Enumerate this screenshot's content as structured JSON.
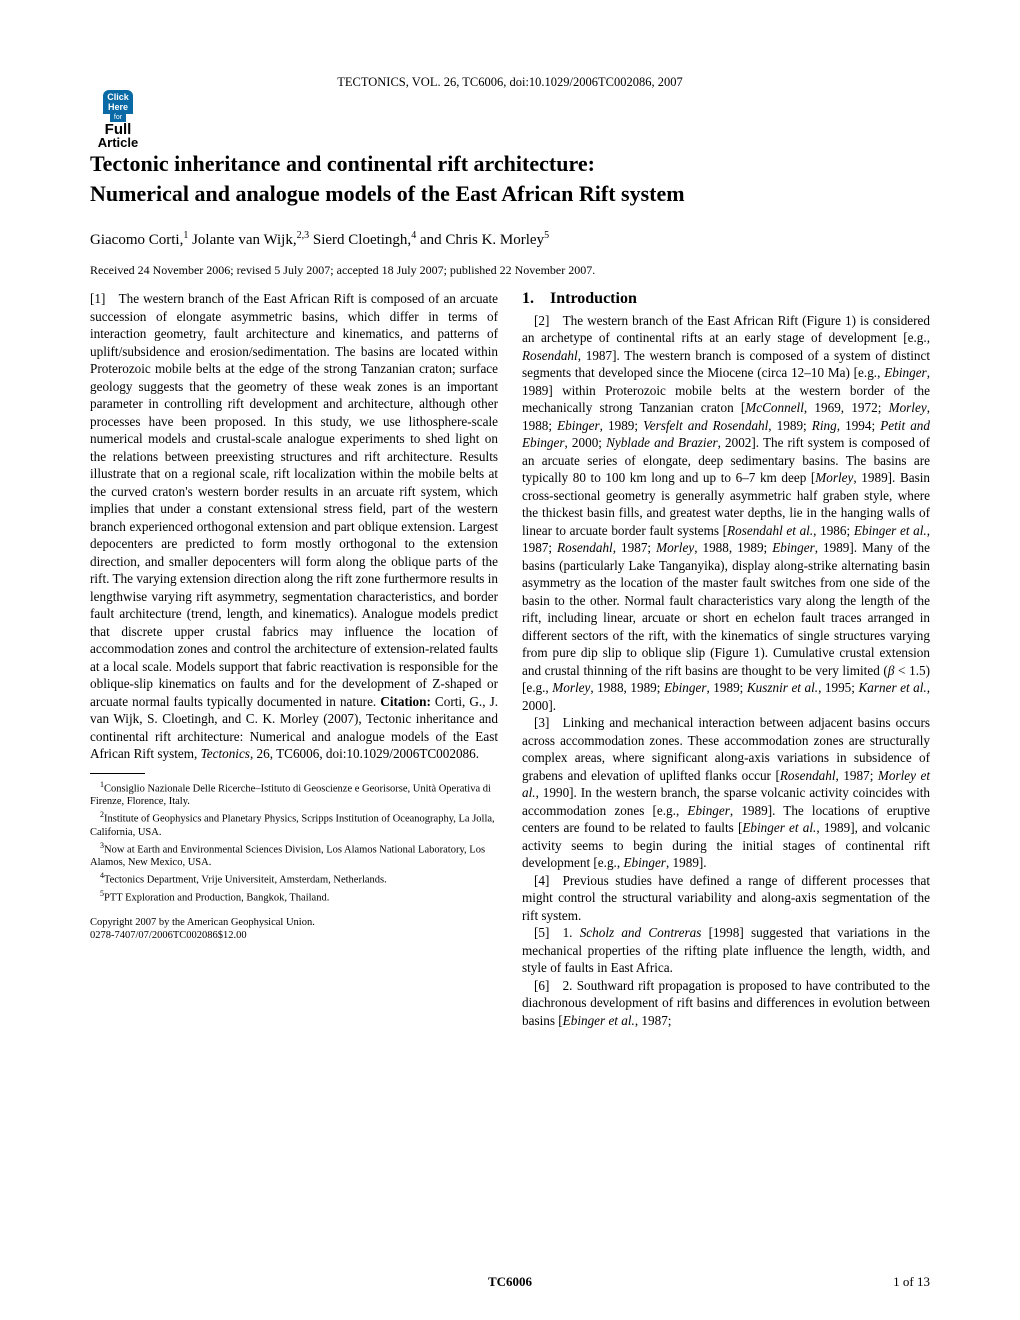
{
  "journal_header": "TECTONICS, VOL. 26, TC6006, doi:10.1029/2006TC002086, 2007",
  "badge": {
    "top_line1": "Click",
    "top_line2": "Here",
    "for": "for",
    "mid": "Full",
    "bot": "Article"
  },
  "title_line1": "Tectonic inheritance and continental rift architecture:",
  "title_line2": "Numerical and analogue models of the East African Rift system",
  "authors_html": "Giacomo Corti,<sup>1</sup> Jolante van Wijk,<sup>2,3</sup> Sierd Cloetingh,<sup>4</sup> and Chris K. Morley<sup>5</sup>",
  "dates": "Received 24 November 2006; revised 5 July 2007; accepted 18 July 2007; published 22 November 2007.",
  "abstract": "[1] The western branch of the East African Rift is composed of an arcuate succession of elongate asymmetric basins, which differ in terms of interaction geometry, fault architecture and kinematics, and patterns of uplift/subsidence and erosion/sedimentation. The basins are located within Proterozoic mobile belts at the edge of the strong Tanzanian craton; surface geology suggests that the geometry of these weak zones is an important parameter in controlling rift development and architecture, although other processes have been proposed. In this study, we use lithosphere-scale numerical models and crustal-scale analogue experiments to shed light on the relations between preexisting structures and rift architecture. Results illustrate that on a regional scale, rift localization within the mobile belts at the curved craton's western border results in an arcuate rift system, which implies that under a constant extensional stress field, part of the western branch experienced orthogonal extension and part oblique extension. Largest depocenters are predicted to form mostly orthogonal to the extension direction, and smaller depocenters will form along the oblique parts of the rift. The varying extension direction along the rift zone furthermore results in lengthwise varying rift asymmetry, segmentation characteristics, and border fault architecture (trend, length, and kinematics). Analogue models predict that discrete upper crustal fabrics may influence the location of accommodation zones and control the architecture of extension-related faults at a local scale. Models support that fabric reactivation is responsible for the oblique-slip kinematics on faults and for the development of Z-shaped or arcuate normal faults typically documented in nature.",
  "citation_label": "Citation:",
  "citation_text": " Corti, G., J. van Wijk, S. Cloetingh, and C. K. Morley (2007), Tectonic inheritance and continental rift architecture: Numerical and analogue models of the East African Rift system, ",
  "citation_journal": "Tectonics",
  "citation_tail": ", 26, TC6006, doi:10.1029/2006TC002086.",
  "affiliations": [
    "<sup>1</sup>Consiglio Nazionale Delle Ricerche–Istituto di Geoscienze e Georisorse, Unità Operativa di Firenze, Florence, Italy.",
    "<sup>2</sup>Institute of Geophysics and Planetary Physics, Scripps Institution of Oceanography, La Jolla, California, USA.",
    "<sup>3</sup>Now at Earth and Environmental Sciences Division, Los Alamos National Laboratory, Los Alamos, New Mexico, USA.",
    "<sup>4</sup>Tectonics Department, Vrije Universiteit, Amsterdam, Netherlands.",
    "<sup>5</sup>PTT Exploration and Production, Bangkok, Thailand."
  ],
  "copyright_line1": "Copyright 2007 by the American Geophysical Union.",
  "copyright_line2": "0278-7407/07/2006TC002086$12.00",
  "section_heading": "1. Introduction",
  "para2": "[2] The western branch of the East African Rift (Figure 1) is considered an archetype of continental rifts at an early stage of development [e.g., <i>Rosendahl</i>, 1987]. The western branch is composed of a system of distinct segments that developed since the Miocene (circa 12–10 Ma) [e.g., <i>Ebinger</i>, 1989] within Proterozoic mobile belts at the western border of the mechanically strong Tanzanian craton [<i>McConnell</i>, 1969, 1972; <i>Morley</i>, 1988; <i>Ebinger</i>, 1989; <i>Versfelt and Rosendahl</i>, 1989; <i>Ring</i>, 1994; <i>Petit and Ebinger</i>, 2000; <i>Nyblade and Brazier</i>, 2002]. The rift system is composed of an arcuate series of elongate, deep sedimentary basins. The basins are typically 80 to 100 km long and up to 6–7 km deep [<i>Morley</i>, 1989]. Basin cross-sectional geometry is generally asymmetric half graben style, where the thickest basin fills, and greatest water depths, lie in the hanging walls of linear to arcuate border fault systems [<i>Rosendahl et al.</i>, 1986; <i>Ebinger et al.</i>, 1987; <i>Rosendahl</i>, 1987; <i>Morley</i>, 1988, 1989; <i>Ebinger</i>, 1989]. Many of the basins (particularly Lake Tanganyika), display along-strike alternating basin asymmetry as the location of the master fault switches from one side of the basin to the other. Normal fault characteristics vary along the length of the rift, including linear, arcuate or short en echelon fault traces arranged in different sectors of the rift, with the kinematics of single structures varying from pure dip slip to oblique slip (Figure 1). Cumulative crustal extension and crustal thinning of the rift basins are thought to be very limited (<i>β</i> &lt; 1.5) [e.g., <i>Morley</i>, 1988, 1989; <i>Ebinger</i>, 1989; <i>Kusznir et al.</i>, 1995; <i>Karner et al.</i>, 2000].",
  "para3": "[3] Linking and mechanical interaction between adjacent basins occurs across accommodation zones. These accommodation zones are structurally complex areas, where significant along-axis variations in subsidence of grabens and elevation of uplifted flanks occur [<i>Rosendahl</i>, 1987; <i>Morley et al.</i>, 1990]. In the western branch, the sparse volcanic activity coincides with accommodation zones [e.g., <i>Ebinger</i>, 1989]. The locations of eruptive centers are found to be related to faults [<i>Ebinger et al.</i>, 1989], and volcanic activity seems to begin during the initial stages of continental rift development [e.g., <i>Ebinger</i>, 1989].",
  "para4": "[4] Previous studies have defined a range of different processes that might control the structural variability and along-axis segmentation of the rift system.",
  "para5": "[5] 1. <i>Scholz and Contreras</i> [1998] suggested that variations in the mechanical properties of the rifting plate influence the length, width, and style of faults in East Africa.",
  "para6": "[6] 2. Southward rift propagation is proposed to have contributed to the diachronous development of rift basins and differences in evolution between basins [<i>Ebinger et al.</i>, 1987;",
  "footer": {
    "left": "",
    "center": "TC6006",
    "right": "1 of 13"
  },
  "colors": {
    "badge_bg": "#0a6aa6",
    "text": "#000000",
    "background": "#ffffff"
  },
  "fonts": {
    "body_family": "Times New Roman",
    "body_size_pt": 10,
    "title_size_pt": 16,
    "header_size_pt": 9,
    "affil_size_pt": 8
  }
}
